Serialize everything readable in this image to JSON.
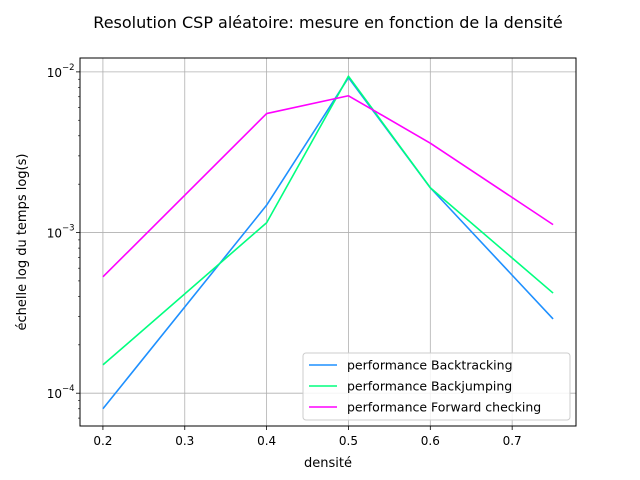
{
  "chart_data": {
    "type": "line",
    "title": "Resolution CSP aléatoire: mesure en fonction de la densité",
    "xlabel": "densité",
    "ylabel": "échelle log du temps log(s)",
    "xlim": [
      0.172,
      0.778
    ],
    "ylim": [
      6.25e-05,
      0.0122
    ],
    "yscale": "log",
    "grid": true,
    "legend_position": "lower-right",
    "x_ticks": [
      0.2,
      0.3,
      0.4,
      0.5,
      0.6,
      0.7
    ],
    "x_tick_labels": [
      "0.2",
      "0.3",
      "0.4",
      "0.5",
      "0.6",
      "0.7"
    ],
    "y_ticks": [
      {
        "value": 0.0001,
        "base": "10",
        "exp": "−4"
      },
      {
        "value": 0.001,
        "base": "10",
        "exp": "−3"
      },
      {
        "value": 0.01,
        "base": "10",
        "exp": "−2"
      }
    ],
    "x": [
      0.2,
      0.4,
      0.5,
      0.6,
      0.75
    ],
    "series": [
      {
        "name": "performance Backtracking",
        "color": "#1e90ff",
        "values": [
          8e-05,
          0.00148,
          0.0092,
          0.0019,
          0.00029
        ]
      },
      {
        "name": "performance Backjumping",
        "color": "#00ff7f",
        "values": [
          0.00015,
          0.00115,
          0.0094,
          0.0019,
          0.00042
        ]
      },
      {
        "name": "performance Forward checking",
        "color": "#ff00ff",
        "values": [
          0.00053,
          0.0055,
          0.0071,
          0.0036,
          0.00112
        ]
      }
    ]
  }
}
